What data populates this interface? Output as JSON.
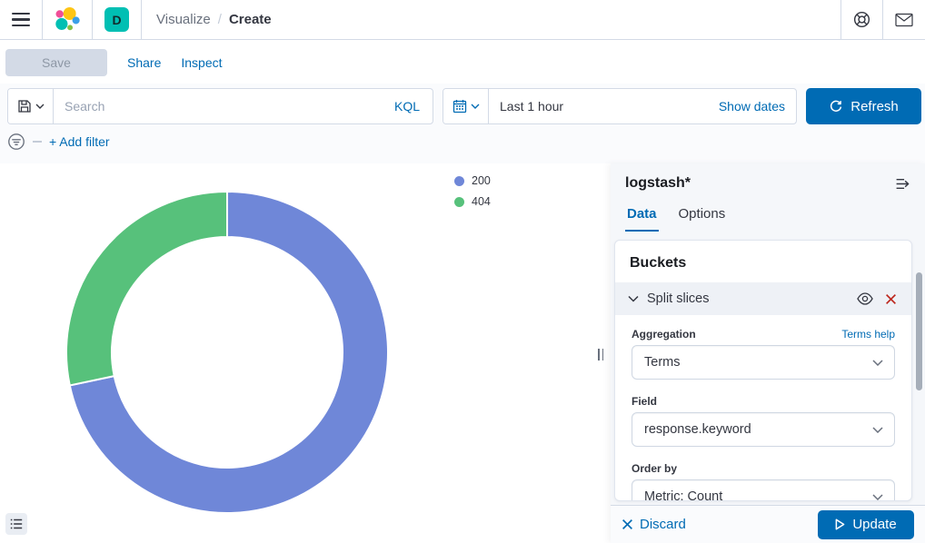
{
  "navbar": {
    "breadcrumb": {
      "parent": "Visualize",
      "separator": "/",
      "current": "Create"
    },
    "space_badge": "D"
  },
  "actions": {
    "save": "Save",
    "share": "Share",
    "inspect": "Inspect"
  },
  "query_bar": {
    "search_placeholder": "Search",
    "kql_label": "KQL",
    "time_range": "Last 1 hour",
    "show_dates_label": "Show dates",
    "refresh_label": "Refresh"
  },
  "filter_bar": {
    "add_filter_label": "+ Add filter"
  },
  "chart_data": {
    "type": "pie",
    "subtype": "donut",
    "title": "",
    "legend_position": "right",
    "units": "percent (estimated from arc angles)",
    "slices": [
      {
        "label": "200",
        "value": 71.7,
        "color": "#6f87d8"
      },
      {
        "label": "404",
        "value": 28.3,
        "color": "#57c17b"
      }
    ]
  },
  "panel": {
    "index_pattern": "logstash*",
    "tabs": [
      {
        "label": "Data",
        "active": true
      },
      {
        "label": "Options",
        "active": false
      }
    ],
    "buckets": {
      "title": "Buckets",
      "agg_row_title": "Split slices",
      "aggregation_label": "Aggregation",
      "aggregation_help": "Terms help",
      "aggregation_value": "Terms",
      "field_label": "Field",
      "field_value": "response.keyword",
      "order_by_label": "Order by",
      "order_by_value": "Metric: Count"
    },
    "footer": {
      "discard_label": "Discard",
      "update_label": "Update"
    }
  },
  "colors": {
    "primary": "#006BB4",
    "accent_teal": "#00BFB3",
    "border": "#D3DAE6",
    "text": "#343741",
    "text_subdued": "#69707D",
    "panel_bg": "#F5F7FA",
    "danger": "#BD271E",
    "slice_200": "#6f87d8",
    "slice_404": "#57c17b"
  }
}
